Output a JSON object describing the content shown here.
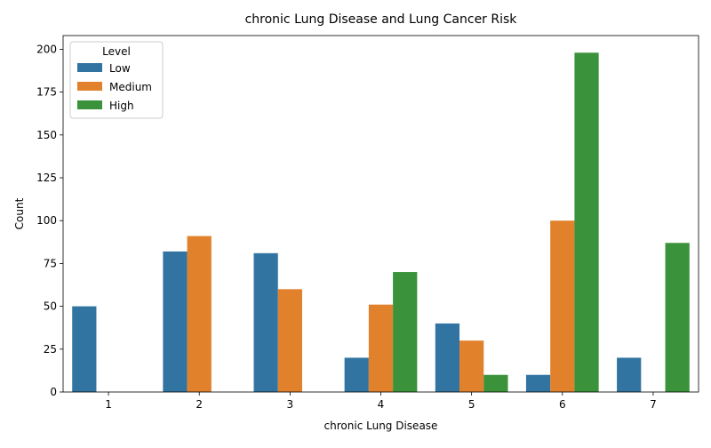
{
  "chart_data": {
    "type": "bar",
    "title": "chronic Lung Disease and Lung Cancer Risk",
    "xlabel": "chronic Lung Disease",
    "ylabel": "Count",
    "categories": [
      "1",
      "2",
      "3",
      "4",
      "5",
      "6",
      "7"
    ],
    "series": [
      {
        "name": "Low",
        "color": "#3274a1",
        "values": [
          50,
          82,
          81,
          20,
          40,
          10,
          20
        ]
      },
      {
        "name": "Medium",
        "color": "#e1812c",
        "values": [
          0,
          91,
          60,
          51,
          30,
          100,
          0
        ]
      },
      {
        "name": "High",
        "color": "#3a923a",
        "values": [
          0,
          0,
          0,
          70,
          10,
          198,
          87
        ]
      }
    ],
    "ylim": [
      0,
      208
    ],
    "yticks": [
      0,
      25,
      50,
      75,
      100,
      125,
      150,
      175,
      200
    ],
    "legend": {
      "title": "Level",
      "placement": "top-left"
    },
    "grid": false
  }
}
